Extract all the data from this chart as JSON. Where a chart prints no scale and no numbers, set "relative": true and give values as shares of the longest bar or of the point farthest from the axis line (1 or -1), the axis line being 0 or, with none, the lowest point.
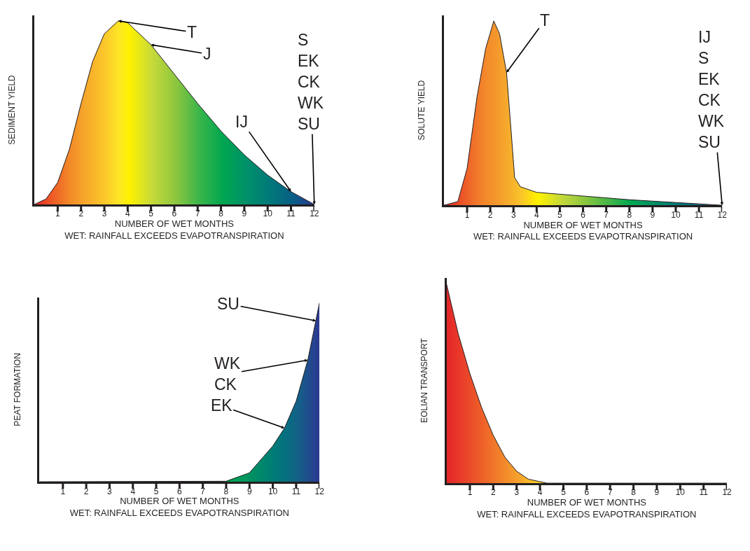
{
  "chart_data": [
    {
      "type": "area",
      "relative": true,
      "ylabel": "SEDIMENT YIELD",
      "xlabel": "NUMBER OF WET MONTHS\nWET: RAINFALL EXCEEDS EVAPOTRANSPIRATION",
      "xlim": [
        0,
        12
      ],
      "xticks": [
        1,
        2,
        3,
        4,
        5,
        6,
        7,
        8,
        9,
        10,
        11,
        12
      ],
      "x": [
        0,
        0.5,
        1,
        1.5,
        2,
        2.5,
        3,
        3.6,
        4,
        5,
        6,
        7,
        8,
        9,
        10,
        11,
        12
      ],
      "values": [
        0,
        0.03,
        0.12,
        0.3,
        0.55,
        0.78,
        0.93,
        1,
        0.99,
        0.87,
        0.71,
        0.55,
        0.4,
        0.27,
        0.16,
        0.07,
        0
      ],
      "colors": [
        "#e42528",
        "#eb4a27",
        "#ef6a27",
        "#f28a28",
        "#f5a12a",
        "#f8b52a",
        "#fbc92a",
        "#fde725",
        "#fff200",
        "#c5d93a",
        "#8cc63f",
        "#39b54a",
        "#00a651",
        "#00906a",
        "#00787a",
        "#0b5c86",
        "#2e3192"
      ],
      "annotations": [
        {
          "text": "T",
          "x": 3.6,
          "y": 1
        },
        {
          "text": "J",
          "x": 5,
          "y": 0.87
        },
        {
          "text": "IJ",
          "x": 11,
          "y": 0.07
        },
        {
          "text": "S\nEK\nCK\nWK\nSU",
          "x": 12,
          "y": 0
        }
      ]
    },
    {
      "type": "area",
      "relative": true,
      "ylabel": "SOLUTE YIELD",
      "xlabel": "NUMBER OF WET MONTHS\nWET: RAINFALL EXCEEDS EVAPOTRANSPIRATION",
      "xlim": [
        0,
        12
      ],
      "xticks": [
        1,
        2,
        3,
        4,
        5,
        6,
        7,
        8,
        9,
        10,
        11,
        12
      ],
      "x": [
        0,
        0.6,
        1,
        1.43,
        1.8,
        2.15,
        2.4,
        2.7,
        2.9,
        3.05,
        3.3,
        4,
        5,
        6,
        8,
        10,
        12
      ],
      "values": [
        0,
        0.02,
        0.2,
        0.59,
        0.85,
        1,
        0.93,
        0.72,
        0.4,
        0.15,
        0.1,
        0.07,
        0.06,
        0.05,
        0.03,
        0.015,
        0
      ],
      "colors": [
        "#e42528",
        "#eb4a29",
        "#ee6228",
        "#f1792a",
        "#f38a2b",
        "#f4942b",
        "#f59e2c",
        "#f6aa2c",
        "#f7b22b",
        "#f8b82b",
        "#fac52a",
        "#fff200",
        "#c5d93a",
        "#8cc63f",
        "#00a651",
        "#00787a",
        "#1f4f80"
      ],
      "annotations": [
        {
          "text": "T",
          "x": 2.7,
          "y": 0.72
        },
        {
          "text": "IJ\nS\nEK\nCK\nWK\nSU",
          "x": 12,
          "y": 0
        }
      ]
    },
    {
      "type": "area",
      "relative": true,
      "ylabel": "PEAT FORMATION",
      "xlabel": "NUMBER OF WET MONTHS\nWET: RAINFALL EXCEEDS EVAPOTRANSPIRATION",
      "xlim": [
        0,
        12
      ],
      "xticks": [
        1,
        2,
        3,
        4,
        5,
        6,
        7,
        8,
        9,
        10,
        11,
        12
      ],
      "x": [
        0,
        8,
        9,
        10,
        10.5,
        11,
        11.5,
        12
      ],
      "values": [
        0,
        0.003,
        0.05,
        0.2,
        0.3,
        0.45,
        0.68,
        1
      ],
      "colors": [
        "#00a651",
        "#00a651",
        "#009063",
        "#007a78",
        "#086c80",
        "#155e88",
        "#23478e",
        "#2e3192"
      ],
      "annotations": [
        {
          "text": "SU",
          "x": 11.85,
          "y": 0.9
        },
        {
          "text": "WK\nCK",
          "x": 11.5,
          "y": 0.68
        },
        {
          "text": "EK",
          "x": 10.5,
          "y": 0.3
        }
      ]
    },
    {
      "type": "area",
      "relative": true,
      "ylabel": "EOLIAN TRANSPORT",
      "xlabel": "NUMBER OF WET MONTHS\nWET: RAINFALL EXCEEDS EVAPOTRANSPIRATION",
      "xlim": [
        0,
        12
      ],
      "xticks": [
        1,
        2,
        3,
        4,
        5,
        6,
        7,
        8,
        9,
        10,
        11,
        12
      ],
      "x": [
        0,
        0.5,
        1,
        1.5,
        2,
        2.5,
        3,
        3.5,
        4.3,
        12
      ],
      "values": [
        1,
        0.75,
        0.55,
        0.38,
        0.24,
        0.13,
        0.06,
        0.02,
        0,
        0
      ],
      "colors": [
        "#e42528",
        "#e8382a",
        "#eb4b29",
        "#ee6028",
        "#f1762a",
        "#f38b2b",
        "#f5a02c",
        "#f8bb29",
        "#fde725",
        "#fde725"
      ]
    }
  ]
}
